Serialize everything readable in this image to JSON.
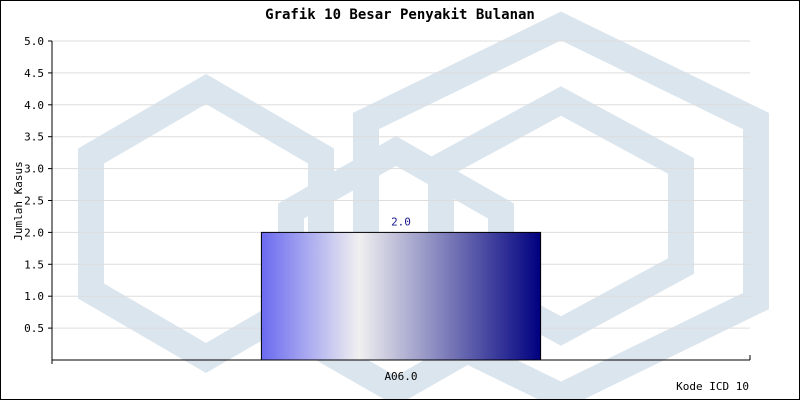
{
  "chart_data": {
    "type": "bar",
    "title": "Grafik 10 Besar Penyakit Bulanan",
    "xlabel": "Kode ICD 10",
    "ylabel": "Jumlah Kasus",
    "categories": [
      "A06.0"
    ],
    "values": [
      2.0
    ],
    "data_labels": [
      "2.0"
    ],
    "ylim": [
      0,
      5
    ],
    "yticks": [
      0.5,
      1.0,
      1.5,
      2.0,
      2.5,
      3.0,
      3.5,
      4.0,
      4.5,
      5.0
    ],
    "ytick_labels": [
      "0.5",
      "1.0",
      "1.5",
      "2.0",
      "2.5",
      "3.0",
      "3.5",
      "4.0",
      "4.5",
      "5.0"
    ],
    "grid": true,
    "legend": "none",
    "colors": {
      "bar_start": "#6a6af0",
      "bar_mid": "#f0f0f0",
      "bar_end": "#000080",
      "grid": "#dddddd",
      "watermark": "#dbe5ee"
    }
  }
}
